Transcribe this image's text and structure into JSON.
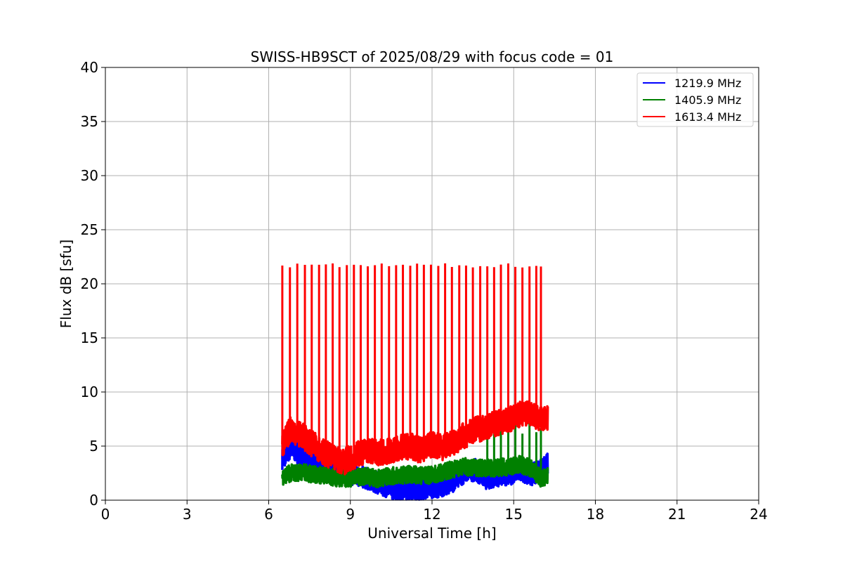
{
  "chart_data": {
    "type": "line",
    "title": "SWISS-HB9SCT of 2025/08/29 with focus code = 01",
    "xlabel": "Universal Time [h]",
    "ylabel": "Flux dB [sfu]",
    "xlim": [
      0,
      24
    ],
    "ylim": [
      0,
      40
    ],
    "xticks": [
      "0",
      "3",
      "6",
      "9",
      "12",
      "15",
      "18",
      "21",
      "24"
    ],
    "yticks": [
      "0",
      "5",
      "10",
      "15",
      "20",
      "25",
      "30",
      "35",
      "40"
    ],
    "grid": true,
    "legend_position": "top-right",
    "series": [
      {
        "name": "1219.9 MHz",
        "color": "#0000ff",
        "x": [
          6.5,
          6.8,
          7.2,
          7.6,
          8.0,
          8.4,
          8.8,
          9.2,
          9.6,
          10.0,
          10.4,
          10.8,
          11.2,
          11.6,
          12.0,
          12.4,
          12.8,
          13.2,
          13.6,
          14.0,
          14.4,
          14.8,
          15.2,
          15.6,
          16.0,
          16.25
        ],
        "values": [
          3.8,
          4.8,
          4.2,
          3.6,
          3.2,
          2.8,
          2.5,
          2.3,
          2.0,
          1.6,
          1.2,
          1.0,
          1.1,
          1.0,
          1.2,
          1.3,
          1.8,
          2.6,
          2.8,
          2.0,
          2.2,
          2.4,
          2.6,
          2.3,
          2.8,
          3.4
        ]
      },
      {
        "name": "1405.9 MHz",
        "color": "#008000",
        "x": [
          6.5,
          6.8,
          7.2,
          7.6,
          8.0,
          8.4,
          8.8,
          9.2,
          9.6,
          10.0,
          10.4,
          10.8,
          11.2,
          11.6,
          12.0,
          12.4,
          12.8,
          13.2,
          13.6,
          14.0,
          14.4,
          14.8,
          15.2,
          15.6,
          16.0,
          16.25
        ],
        "values": [
          2.2,
          2.5,
          2.6,
          2.4,
          2.3,
          2.1,
          2.0,
          2.1,
          2.2,
          2.0,
          2.2,
          2.3,
          2.4,
          2.3,
          2.3,
          2.6,
          2.9,
          3.1,
          3.0,
          3.0,
          3.0,
          3.1,
          3.3,
          3.0,
          2.0,
          2.2
        ]
      },
      {
        "name": "1613.4 MHz",
        "color": "#ff0000",
        "x": [
          6.5,
          6.8,
          7.2,
          7.6,
          8.0,
          8.4,
          8.8,
          9.2,
          9.6,
          10.0,
          10.4,
          10.8,
          11.2,
          11.6,
          12.0,
          12.4,
          12.8,
          13.2,
          13.6,
          14.0,
          14.4,
          14.8,
          15.2,
          15.6,
          16.0,
          16.25
        ],
        "values": [
          5.0,
          6.6,
          6.0,
          5.2,
          4.5,
          3.8,
          3.6,
          4.2,
          4.6,
          4.4,
          4.5,
          4.8,
          5.0,
          4.6,
          5.2,
          4.9,
          5.4,
          6.0,
          6.5,
          6.8,
          7.1,
          7.4,
          7.9,
          8.0,
          7.4,
          7.5
        ]
      }
    ],
    "spikes": {
      "series": "1613.4 MHz",
      "peak": 21.7,
      "times": [
        6.5,
        6.78,
        7.05,
        7.33,
        7.58,
        7.85,
        8.1,
        8.35,
        8.6,
        8.87,
        9.13,
        9.38,
        9.64,
        9.9,
        10.15,
        10.42,
        10.68,
        10.93,
        11.2,
        11.45,
        11.7,
        11.96,
        12.23,
        12.48,
        12.73,
        13.0,
        13.25,
        13.5,
        13.77,
        14.03,
        14.28,
        14.53,
        14.8,
        15.06,
        15.32,
        15.58,
        15.83,
        16.0
      ]
    }
  }
}
